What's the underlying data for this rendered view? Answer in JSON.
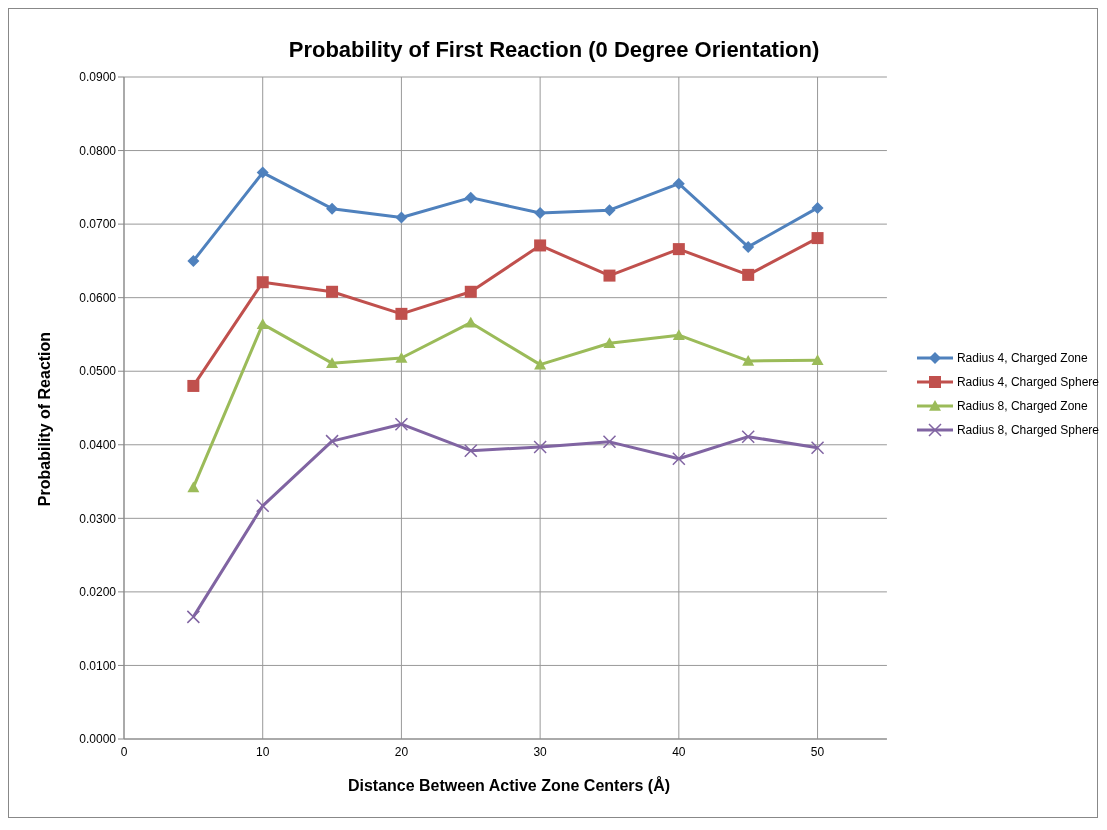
{
  "chart_data": {
    "type": "line",
    "title": "Probability of First Reaction (0 Degree Orientation)",
    "xlabel": "Distance Between Active Zone Centers (Å)",
    "ylabel": "Probability of Reaction",
    "x": [
      5,
      10,
      15,
      20,
      25,
      30,
      35,
      40,
      45,
      50
    ],
    "series": [
      {
        "name": "Radius 4, Charged Zone",
        "color": "#4f81bd",
        "marker": "diamond",
        "values": [
          0.065,
          0.077,
          0.0721,
          0.0709,
          0.0736,
          0.0715,
          0.0719,
          0.0755,
          0.0669,
          0.0722
        ]
      },
      {
        "name": "Radius 4, Charged Sphere",
        "color": "#c0504d",
        "marker": "square",
        "values": [
          0.048,
          0.0621,
          0.0608,
          0.0578,
          0.0608,
          0.0671,
          0.063,
          0.0666,
          0.0631,
          0.0681
        ]
      },
      {
        "name": "Radius 8, Charged Zone",
        "color": "#9bbb59",
        "marker": "triangle",
        "values": [
          0.0342,
          0.0564,
          0.0511,
          0.0518,
          0.0566,
          0.0509,
          0.0538,
          0.0549,
          0.0514,
          0.0515
        ]
      },
      {
        "name": "Radius 8, Charged Sphere",
        "color": "#8064a2",
        "marker": "cross",
        "values": [
          0.0166,
          0.0317,
          0.0405,
          0.0428,
          0.0392,
          0.0397,
          0.0404,
          0.0381,
          0.0411,
          0.0396
        ]
      }
    ],
    "xlim": [
      0,
      55
    ],
    "xticks": [
      0,
      10,
      20,
      30,
      40,
      50
    ],
    "ylim": [
      0,
      0.09
    ],
    "yticks": [
      {
        "value": 0,
        "label": "0.0000"
      },
      {
        "value": 0.01,
        "label": "0.0100"
      },
      {
        "value": 0.02,
        "label": "0.0200"
      },
      {
        "value": 0.03,
        "label": "0.0300"
      },
      {
        "value": 0.04,
        "label": "0.0400"
      },
      {
        "value": 0.05,
        "label": "0.0500"
      },
      {
        "value": 0.06,
        "label": "0.0600"
      },
      {
        "value": 0.07,
        "label": "0.0700"
      },
      {
        "value": 0.08,
        "label": "0.0800"
      },
      {
        "value": 0.09,
        "label": "0.0900"
      }
    ],
    "grid": true,
    "legend": "right",
    "line_style": "solid"
  }
}
